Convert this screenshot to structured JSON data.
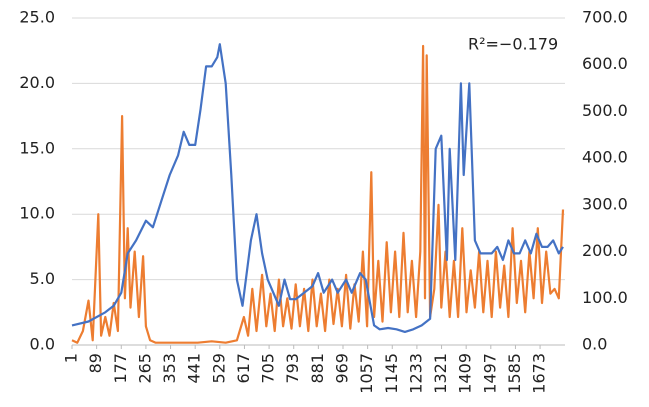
{
  "chart_data": {
    "type": "line",
    "annotation": "R²=−0.179",
    "xlim": [
      1,
      1762
    ],
    "xticks": [
      1,
      89,
      177,
      265,
      353,
      441,
      529,
      617,
      705,
      793,
      881,
      969,
      1057,
      1145,
      1233,
      1321,
      1409,
      1497,
      1585,
      1673
    ],
    "ylim": [
      0,
      25
    ],
    "yticks": [
      {
        "value": 0,
        "label": "0.0"
      },
      {
        "value": 5,
        "label": "5.0"
      },
      {
        "value": 10,
        "label": "10.0"
      },
      {
        "value": 15,
        "label": "15.0"
      },
      {
        "value": 20,
        "label": "20.0"
      },
      {
        "value": 25,
        "label": "25.0"
      }
    ],
    "y2lim": [
      0,
      700
    ],
    "y2ticks": [
      {
        "value": 0,
        "label": "0.0"
      },
      {
        "value": 100,
        "label": "100.0"
      },
      {
        "value": 200,
        "label": "200.0"
      },
      {
        "value": 300,
        "label": "300.0"
      },
      {
        "value": 400,
        "label": "400.0"
      },
      {
        "value": 500,
        "label": "500.0"
      },
      {
        "value": 600,
        "label": "600.0"
      },
      {
        "value": 700,
        "label": "700.0"
      }
    ],
    "grid": true,
    "series": [
      {
        "color": "#ed7d31",
        "axis": "y2",
        "x": [
          1,
          20,
          40,
          60,
          75,
          95,
          105,
          120,
          135,
          150,
          165,
          180,
          190,
          200,
          210,
          225,
          240,
          255,
          265,
          280,
          300,
          350,
          400,
          450,
          500,
          550,
          590,
          615,
          630,
          645,
          660,
          680,
          695,
          710,
          725,
          740,
          755,
          770,
          785,
          800,
          815,
          830,
          845,
          860,
          875,
          890,
          905,
          920,
          935,
          950,
          965,
          980,
          995,
          1010,
          1025,
          1040,
          1055,
          1070,
          1080,
          1095,
          1110,
          1125,
          1140,
          1155,
          1170,
          1185,
          1200,
          1215,
          1230,
          1245,
          1255,
          1262,
          1268,
          1280,
          1295,
          1310,
          1320,
          1335,
          1350,
          1365,
          1380,
          1395,
          1410,
          1425,
          1440,
          1455,
          1470,
          1485,
          1500,
          1515,
          1530,
          1545,
          1560,
          1575,
          1590,
          1605,
          1620,
          1635,
          1650,
          1665,
          1680,
          1695,
          1710,
          1725,
          1740,
          1755
        ],
        "values": [
          10,
          5,
          30,
          95,
          10,
          280,
          20,
          60,
          20,
          90,
          30,
          490,
          100,
          250,
          80,
          200,
          60,
          190,
          40,
          10,
          5,
          5,
          5,
          5,
          8,
          5,
          10,
          60,
          20,
          120,
          30,
          150,
          40,
          110,
          30,
          140,
          40,
          100,
          35,
          130,
          40,
          120,
          30,
          140,
          40,
          110,
          30,
          140,
          45,
          120,
          40,
          150,
          35,
          130,
          50,
          200,
          40,
          370,
          60,
          180,
          50,
          220,
          70,
          200,
          60,
          240,
          70,
          180,
          60,
          200,
          640,
          100,
          620,
          60,
          120,
          300,
          80,
          200,
          60,
          180,
          60,
          250,
          70,
          160,
          80,
          200,
          70,
          180,
          60,
          200,
          80,
          170,
          60,
          250,
          90,
          180,
          70,
          200,
          100,
          250,
          90,
          200,
          110,
          120,
          100,
          290
        ]
      },
      {
        "color": "#4472c4",
        "x": [
          1,
          60,
          120,
          150,
          177,
          200,
          230,
          265,
          290,
          320,
          350,
          380,
          400,
          420,
          441,
          460,
          480,
          500,
          520,
          529,
          550,
          570,
          590,
          610,
          640,
          660,
          680,
          700,
          720,
          740,
          760,
          780,
          800,
          830,
          860,
          880,
          900,
          930,
          950,
          980,
          1000,
          1030,
          1050,
          1080,
          1100,
          1130,
          1160,
          1190,
          1220,
          1250,
          1280,
          1300,
          1320,
          1340,
          1350,
          1370,
          1390,
          1400,
          1420,
          1440,
          1460,
          1480,
          1500,
          1520,
          1540,
          1560,
          1580,
          1600,
          1620,
          1640,
          1660,
          1680,
          1700,
          1720,
          1740,
          1755
        ],
        "values": [
          1.5,
          1.8,
          2.5,
          3,
          4,
          7,
          8,
          9.5,
          9,
          11,
          13,
          14.5,
          16.3,
          15.3,
          15.3,
          18,
          21.3,
          21.3,
          22,
          23,
          20,
          13,
          5,
          3,
          8,
          10,
          7,
          5,
          4,
          3,
          5,
          3.5,
          3.5,
          4,
          4.5,
          5.5,
          4,
          5,
          4,
          5,
          4,
          5.5,
          5,
          1.5,
          1.2,
          1.3,
          1.2,
          1,
          1.2,
          1.5,
          2,
          15,
          16,
          6.5,
          15,
          6.5,
          20,
          13,
          20,
          8,
          7,
          7,
          7,
          7.5,
          6.5,
          8,
          7,
          7,
          8,
          7,
          8.5,
          7.5,
          7.5,
          8,
          7,
          7.5
        ]
      }
    ]
  }
}
